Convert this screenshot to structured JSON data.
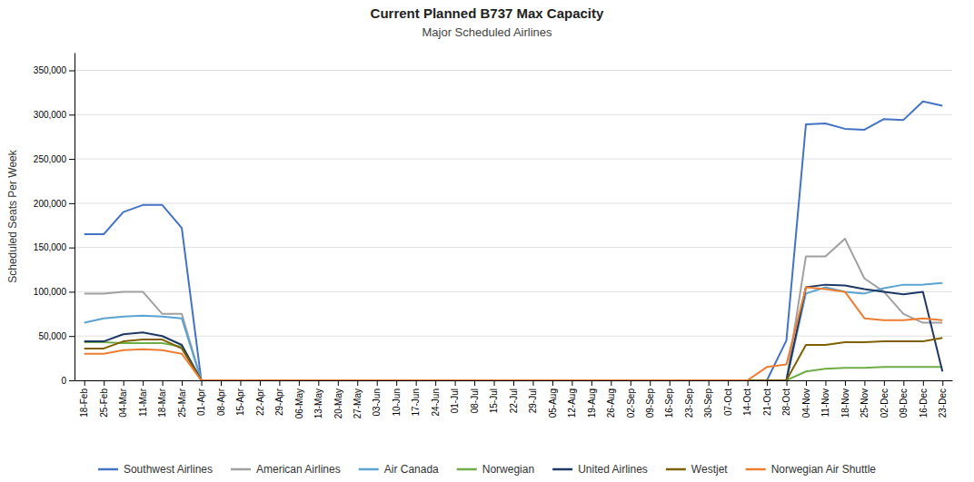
{
  "chart_data": {
    "type": "line",
    "title": "Current Planned B737 Max Capacity",
    "subtitle": "Major Scheduled Airlines",
    "y_label": "Scheduled Seats Per Week",
    "ylim": [
      0,
      370000
    ],
    "yticks": [
      0,
      {
        "value": 50000,
        "label": "50,000"
      },
      {
        "value": 100000,
        "label": "100,000"
      },
      {
        "value": 150000,
        "label": "150,000"
      },
      {
        "value": 200000,
        "label": "200,000"
      },
      {
        "value": 250000,
        "label": "250,000"
      },
      {
        "value": 300000,
        "label": "300,000"
      },
      {
        "value": 350000,
        "label": "350,000"
      }
    ],
    "grid": true,
    "legend": "bottom",
    "categories": [
      "18-Feb",
      "25-Feb",
      "04-Mar",
      "11-Mar",
      "18-Mar",
      "25-Mar",
      "01-Apr",
      "08-Apr",
      "15-Apr",
      "22-Apr",
      "29-Apr",
      "06-May",
      "13-May",
      "20-May",
      "27-May",
      "03-Jun",
      "10-Jun",
      "17-Jun",
      "24-Jun",
      "01-Jul",
      "08-Jul",
      "15-Jul",
      "22-Jul",
      "29-Jul",
      "05-Aug",
      "12-Aug",
      "19-Aug",
      "26-Aug",
      "02-Sep",
      "09-Sep",
      "16-Sep",
      "23-Sep",
      "30-Sep",
      "07-Oct",
      "14-Oct",
      "21-Oct",
      "28-Oct",
      "04-Nov",
      "11-Nov",
      "18-Nov",
      "25-Nov",
      "02-Dec",
      "09-Dec",
      "16-Dec",
      "23-Dec"
    ],
    "series": [
      {
        "name": "Southwest Airlines",
        "color": "#4472C4",
        "values": [
          165000,
          165000,
          190000,
          198000,
          198000,
          172000,
          0,
          0,
          0,
          0,
          0,
          0,
          0,
          0,
          0,
          0,
          0,
          0,
          0,
          0,
          0,
          0,
          0,
          0,
          0,
          0,
          0,
          0,
          0,
          0,
          0,
          0,
          0,
          0,
          0,
          0,
          45000,
          289000,
          290000,
          284000,
          283000,
          295000,
          294000,
          315000,
          310000
        ]
      },
      {
        "name": "American Airlines",
        "color": "#A0A0A0",
        "values": [
          98000,
          98000,
          100000,
          100000,
          75000,
          75000,
          0,
          0,
          0,
          0,
          0,
          0,
          0,
          0,
          0,
          0,
          0,
          0,
          0,
          0,
          0,
          0,
          0,
          0,
          0,
          0,
          0,
          0,
          0,
          0,
          0,
          0,
          0,
          0,
          0,
          0,
          0,
          140000,
          140000,
          160000,
          115000,
          100000,
          75000,
          65000,
          65000
        ]
      },
      {
        "name": "Air Canada",
        "color": "#5BA3D0",
        "values": [
          65000,
          70000,
          72000,
          73000,
          72000,
          70000,
          0,
          0,
          0,
          0,
          0,
          0,
          0,
          0,
          0,
          0,
          0,
          0,
          0,
          0,
          0,
          0,
          0,
          0,
          0,
          0,
          0,
          0,
          0,
          0,
          0,
          0,
          0,
          0,
          0,
          0,
          0,
          98000,
          105000,
          100000,
          98000,
          104000,
          108000,
          108000,
          110000
        ]
      },
      {
        "name": "Norwegian",
        "color": "#70AD47",
        "values": [
          43000,
          43000,
          42000,
          42000,
          42000,
          38000,
          0,
          0,
          0,
          0,
          0,
          0,
          0,
          0,
          0,
          0,
          0,
          0,
          0,
          0,
          0,
          0,
          0,
          0,
          0,
          0,
          0,
          0,
          0,
          0,
          0,
          0,
          0,
          0,
          0,
          0,
          0,
          10000,
          13000,
          14000,
          14000,
          15000,
          15000,
          15000,
          15000
        ]
      },
      {
        "name": "United Airlines",
        "color": "#1F3864",
        "values": [
          44000,
          44000,
          52000,
          54000,
          50000,
          40000,
          0,
          0,
          0,
          0,
          0,
          0,
          0,
          0,
          0,
          0,
          0,
          0,
          0,
          0,
          0,
          0,
          0,
          0,
          0,
          0,
          0,
          0,
          0,
          0,
          0,
          0,
          0,
          0,
          0,
          0,
          0,
          105000,
          108000,
          107000,
          103000,
          100000,
          97000,
          100000,
          10000
        ]
      },
      {
        "name": "Westjet",
        "color": "#7F6000",
        "values": [
          36000,
          36000,
          44000,
          46000,
          46000,
          36000,
          0,
          0,
          0,
          0,
          0,
          0,
          0,
          0,
          0,
          0,
          0,
          0,
          0,
          0,
          0,
          0,
          0,
          0,
          0,
          0,
          0,
          0,
          0,
          0,
          0,
          0,
          0,
          0,
          0,
          0,
          0,
          40000,
          40000,
          43000,
          43000,
          44000,
          44000,
          44000,
          48000
        ]
      },
      {
        "name": "Norwegian Air Shuttle",
        "color": "#ED7D31",
        "values": [
          30000,
          30000,
          34000,
          35000,
          34000,
          30000,
          0,
          0,
          0,
          0,
          0,
          0,
          0,
          0,
          0,
          0,
          0,
          0,
          0,
          0,
          0,
          0,
          0,
          0,
          0,
          0,
          0,
          0,
          0,
          0,
          0,
          0,
          0,
          0,
          0,
          15000,
          18000,
          105000,
          103000,
          100000,
          70000,
          68000,
          68000,
          70000,
          68000
        ]
      }
    ]
  }
}
